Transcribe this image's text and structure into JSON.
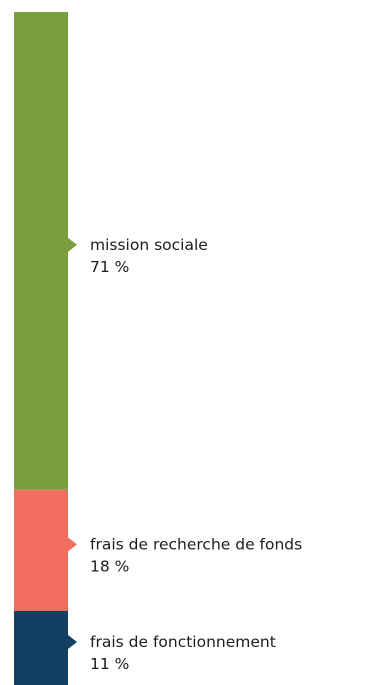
{
  "chart_data": {
    "type": "bar",
    "stacked": true,
    "orientation": "vertical",
    "title": "",
    "xlabel": "",
    "ylabel": "",
    "unit": "%",
    "total": 100,
    "segments": [
      {
        "category": "mission sociale",
        "value": 71,
        "value_label": "71 %",
        "color": "#7a9e3c"
      },
      {
        "category": "frais de recherche de fonds",
        "value": 18,
        "value_label": "18 %",
        "color": "#f26f60"
      },
      {
        "category": "frais de fonctionnement",
        "value": 11,
        "value_label": "11 %",
        "color": "#123f62"
      }
    ]
  }
}
